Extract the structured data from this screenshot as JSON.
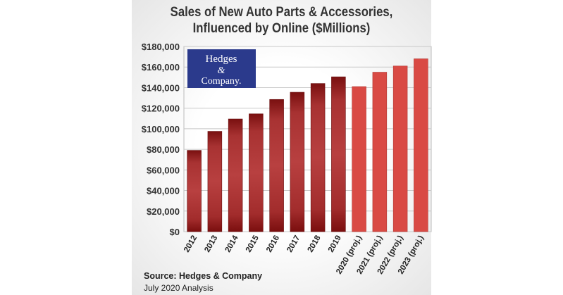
{
  "chart_data": {
    "type": "bar",
    "title": "Sales of New Auto Parts & Accessories, Influenced by Online ($Millions)",
    "title_lines": [
      "Sales of New Auto Parts & Accessories,",
      "Influenced by Online ($Millions)"
    ],
    "categories": [
      "2012",
      "2013",
      "2014",
      "2015",
      "2016",
      "2017",
      "2018",
      "2019",
      "2020 (proj.)",
      "2021 (proj.)",
      "2022 (proj.)",
      "2023 (proj.)"
    ],
    "values": [
      79000,
      97500,
      109500,
      114500,
      128500,
      135500,
      144000,
      150500,
      141000,
      155000,
      161000,
      168000
    ],
    "projected": [
      false,
      false,
      false,
      false,
      false,
      false,
      false,
      false,
      true,
      true,
      true,
      true
    ],
    "ylim": [
      0,
      180000
    ],
    "yticks": [
      "$0",
      "$20,000",
      "$40,000",
      "$60,000",
      "$80,000",
      "$100,000",
      "$120,000",
      "$140,000",
      "$160,000",
      "$180,000"
    ],
    "grid": true,
    "colors": {
      "actual": "#8b1a1a",
      "projected": "#d94a44",
      "logo_bg": "#2b3a8c"
    }
  },
  "logo": {
    "text": "Hedges & Company."
  },
  "source": "Source: Hedges & Company",
  "analysis_date": "July 2020 Analysis"
}
